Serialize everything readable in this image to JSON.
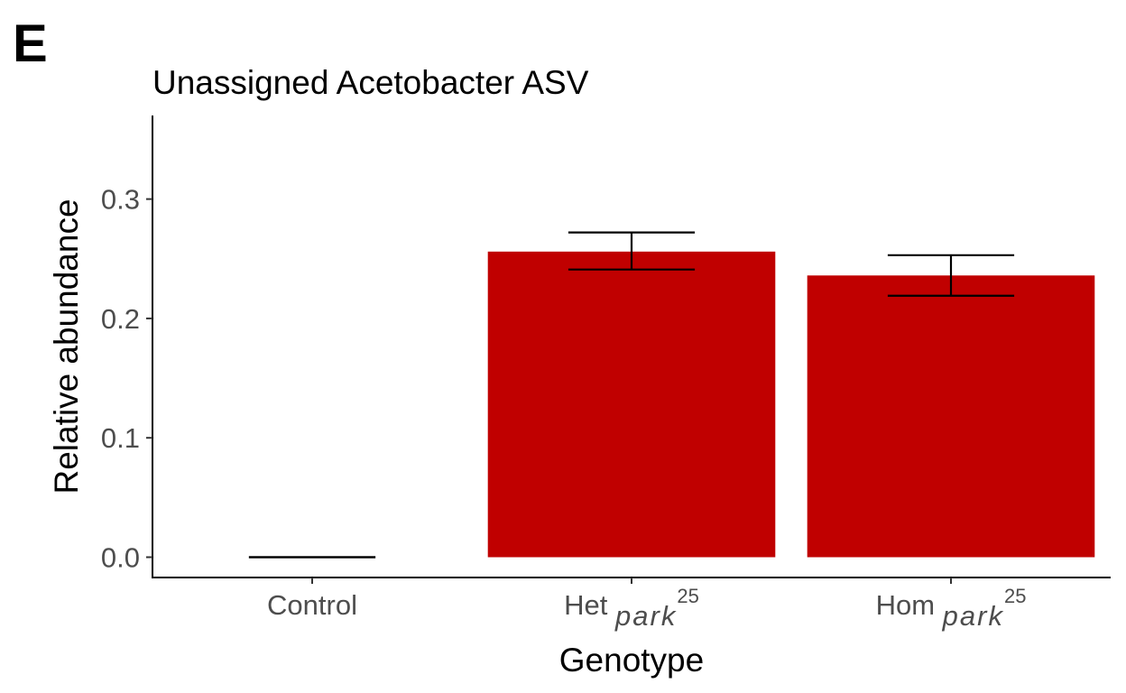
{
  "panel_label": "E",
  "chart_data": {
    "type": "bar",
    "title": "Unassigned Acetobacter ASV",
    "xlabel": "Genotype",
    "ylabel": "Relative abundance",
    "categories": [
      {
        "prefix": "Control",
        "italic": "",
        "sup": ""
      },
      {
        "prefix": "Het ",
        "italic": "park",
        "sup": "25"
      },
      {
        "prefix": "Hom ",
        "italic": "park",
        "sup": "25"
      }
    ],
    "values": [
      0.0,
      0.256,
      0.236
    ],
    "error_low": [
      0.0,
      0.241,
      0.219
    ],
    "error_high": [
      0.0,
      0.272,
      0.253
    ],
    "ylim": [
      -0.017,
      0.37
    ],
    "yticks": [
      "0.0",
      "0.1",
      "0.2",
      "0.3"
    ],
    "grid": false,
    "bar_color": "#c00000"
  }
}
